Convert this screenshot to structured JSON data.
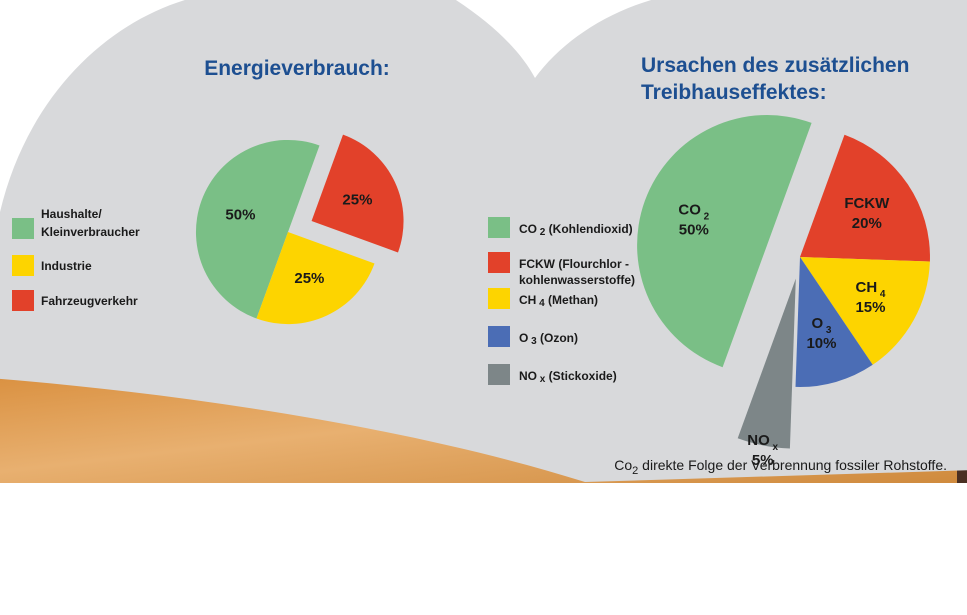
{
  "colors": {
    "background_panel": "#d8d9db",
    "title": "#1d4f91",
    "green": "#7abf86",
    "red": "#e2412a",
    "yellow": "#fdd400",
    "blue": "#4b6db5",
    "gray": "#7d8688",
    "wood": "#e3a35a"
  },
  "chart_data": [
    {
      "type": "pie",
      "title": "Energieverbrauch:",
      "slices": [
        {
          "label": "Haushalte/ Kleinverbraucher",
          "value": 50,
          "text": "50%",
          "color": "#7abf86",
          "exploded": false
        },
        {
          "label": "Fahrzeugverkehr",
          "value": 25,
          "text": "25%",
          "color": "#e2412a",
          "exploded": true
        },
        {
          "label": "Industrie",
          "value": 25,
          "text": "25%",
          "color": "#fdd400",
          "exploded": false
        }
      ],
      "legend": [
        {
          "line1": "Haushalte/",
          "line2": "Kleinverbraucher",
          "color": "#7abf86"
        },
        {
          "line1": "Industrie",
          "line2": "",
          "color": "#fdd400"
        },
        {
          "line1": "Fahrzeugverkehr",
          "line2": "",
          "color": "#e2412a"
        }
      ],
      "legend_position": "left"
    },
    {
      "type": "pie",
      "title_line1": "Ursachen des zusätzlichen",
      "title_line2": "Treibhauseffektes:",
      "slices": [
        {
          "name": "FCKW",
          "text": "20%",
          "value": 20,
          "color": "#e2412a",
          "exploded": false
        },
        {
          "name": "CH",
          "sub": "4",
          "text": "15%",
          "value": 15,
          "color": "#fdd400",
          "exploded": false
        },
        {
          "name": "O",
          "sub": "3",
          "text": "10%",
          "value": 10,
          "color": "#4b6db5",
          "exploded": false
        },
        {
          "name": "NO",
          "sub": "x",
          "text": "5%",
          "value": 5,
          "color": "#7d8688",
          "exploded": true
        },
        {
          "name": "CO",
          "sub": "2",
          "text": "50%",
          "value": 50,
          "color": "#7abf86",
          "exploded": true
        }
      ],
      "legend": [
        {
          "main": "CO",
          "sub": "2",
          "rest": " (Kohlendioxid)",
          "line2": "",
          "color": "#7abf86"
        },
        {
          "main": "FCKW (Flourchlor  -",
          "sub": "",
          "rest": "",
          "line2": "kohlenwasserstoffe)",
          "color": "#e2412a"
        },
        {
          "main": "CH",
          "sub": "4",
          "rest": " (Methan)",
          "line2": "",
          "color": "#fdd400"
        },
        {
          "main": "O",
          "sub": "3",
          "rest": "  (Ozon)",
          "line2": "",
          "color": "#4b6db5"
        },
        {
          "main": "NO",
          "sub": "x",
          "rest": "  (Stickoxide)",
          "line2": "",
          "color": "#7d8688"
        }
      ],
      "legend_position": "left"
    }
  ],
  "footnote": {
    "pre": "Co",
    "sub": "2",
    "rest": " direkte Folge der Verbrennung fossiler Rohstoffe."
  }
}
